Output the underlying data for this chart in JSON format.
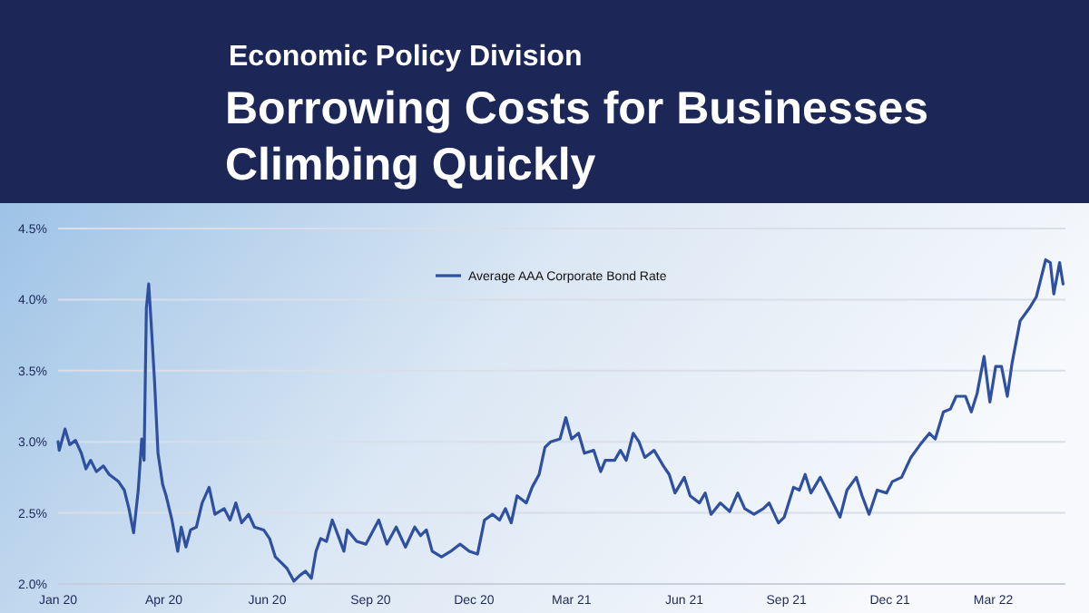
{
  "chart_data": {
    "type": "line",
    "subtitle": "Economic Policy Division",
    "title": "Borrowing Costs for Businesses Climbing Quickly",
    "x": [
      "2020-01-01",
      "2020-01-02",
      "2020-01-07",
      "2020-01-11",
      "2020-01-16",
      "2020-01-21",
      "2020-01-25",
      "2020-01-29",
      "2020-02-03",
      "2020-02-09",
      "2020-02-14",
      "2020-02-22",
      "2020-02-27",
      "2020-03-02",
      "2020-03-06",
      "2020-03-10",
      "2020-03-13",
      "2020-03-15",
      "2020-03-17",
      "2020-03-19",
      "2020-03-21",
      "2020-03-24",
      "2020-03-27",
      "2020-03-31",
      "2020-04-03",
      "2020-04-08",
      "2020-04-13",
      "2020-04-16",
      "2020-04-20",
      "2020-04-24",
      "2020-04-29",
      "2020-05-04",
      "2020-05-10",
      "2020-05-15",
      "2020-05-23",
      "2020-05-28",
      "2020-06-02",
      "2020-06-07",
      "2020-06-13",
      "2020-06-18",
      "2020-06-26",
      "2020-07-01",
      "2020-07-06",
      "2020-07-11",
      "2020-07-16",
      "2020-07-22",
      "2020-07-27",
      "2020-08-01",
      "2020-08-06",
      "2020-08-10",
      "2020-08-14",
      "2020-08-19",
      "2020-08-24",
      "2020-08-30",
      "2020-09-03",
      "2020-09-06",
      "2020-09-14",
      "2020-09-22",
      "2020-10-03",
      "2020-10-10",
      "2020-10-18",
      "2020-10-26",
      "2020-11-03",
      "2020-11-08",
      "2020-11-13",
      "2020-11-18",
      "2020-11-26",
      "2020-12-04",
      "2020-12-12",
      "2020-12-20",
      "2020-12-27",
      "2021-01-02",
      "2021-01-09",
      "2021-01-15",
      "2021-01-20",
      "2021-01-25",
      "2021-01-30",
      "2021-02-07",
      "2021-02-12",
      "2021-02-18",
      "2021-02-23",
      "2021-02-28",
      "2021-03-08",
      "2021-03-13",
      "2021-03-18",
      "2021-03-24",
      "2021-03-29",
      "2021-04-06",
      "2021-04-12",
      "2021-04-16",
      "2021-04-24",
      "2021-04-29",
      "2021-05-04",
      "2021-05-10",
      "2021-05-15",
      "2021-05-20",
      "2021-05-28",
      "2021-06-05",
      "2021-06-10",
      "2021-06-15",
      "2021-06-23",
      "2021-06-28",
      "2021-07-06",
      "2021-07-11",
      "2021-07-16",
      "2021-07-24",
      "2021-08-01",
      "2021-08-08",
      "2021-08-14",
      "2021-08-22",
      "2021-08-30",
      "2021-09-04",
      "2021-09-12",
      "2021-09-17",
      "2021-09-25",
      "2021-09-30",
      "2021-10-05",
      "2021-10-10",
      "2021-10-18",
      "2021-10-26",
      "2021-11-04",
      "2021-11-10",
      "2021-11-18",
      "2021-11-23",
      "2021-11-29",
      "2021-12-06",
      "2021-12-14",
      "2021-12-19",
      "2021-12-27",
      "2022-01-04",
      "2022-01-12",
      "2022-01-20",
      "2022-01-25",
      "2022-02-01",
      "2022-02-07",
      "2022-02-12",
      "2022-02-20",
      "2022-02-25",
      "2022-03-02",
      "2022-03-08",
      "2022-03-13",
      "2022-03-18",
      "2022-03-23",
      "2022-03-28",
      "2022-04-01",
      "2022-04-08",
      "2022-04-16",
      "2022-04-22",
      "2022-04-26",
      "2022-04-30",
      "2022-05-04",
      "2022-05-07",
      "2022-05-12",
      "2022-05-15"
    ],
    "series": [
      {
        "name": "Average AAA Corporate Bond Rate",
        "color": "#2f4f9f",
        "values": [
          3.0,
          2.94,
          3.09,
          2.98,
          3.01,
          2.92,
          2.81,
          2.87,
          2.79,
          2.83,
          2.77,
          2.72,
          2.66,
          2.53,
          2.36,
          2.66,
          3.02,
          2.87,
          3.94,
          4.11,
          3.85,
          3.43,
          2.92,
          2.7,
          2.62,
          2.45,
          2.23,
          2.4,
          2.26,
          2.38,
          2.4,
          2.57,
          2.68,
          2.49,
          2.53,
          2.45,
          2.57,
          2.43,
          2.49,
          2.4,
          2.38,
          2.32,
          2.19,
          2.15,
          2.11,
          2.02,
          2.06,
          2.09,
          2.04,
          2.23,
          2.32,
          2.3,
          2.45,
          2.32,
          2.23,
          2.38,
          2.3,
          2.28,
          2.45,
          2.28,
          2.4,
          2.26,
          2.4,
          2.34,
          2.38,
          2.23,
          2.19,
          2.23,
          2.28,
          2.23,
          2.21,
          2.45,
          2.49,
          2.45,
          2.53,
          2.43,
          2.62,
          2.57,
          2.68,
          2.77,
          2.96,
          3.0,
          3.02,
          3.17,
          3.02,
          3.06,
          2.92,
          2.94,
          2.79,
          2.87,
          2.87,
          2.94,
          2.87,
          3.06,
          3.0,
          2.89,
          2.94,
          2.83,
          2.77,
          2.64,
          2.75,
          2.62,
          2.57,
          2.64,
          2.49,
          2.57,
          2.51,
          2.64,
          2.53,
          2.49,
          2.53,
          2.57,
          2.43,
          2.47,
          2.68,
          2.66,
          2.77,
          2.64,
          2.75,
          2.62,
          2.47,
          2.66,
          2.75,
          2.62,
          2.49,
          2.66,
          2.64,
          2.72,
          2.75,
          2.89,
          2.98,
          3.06,
          3.02,
          3.21,
          3.23,
          3.32,
          3.32,
          3.21,
          3.34,
          3.6,
          3.28,
          3.53,
          3.53,
          3.32,
          3.55,
          3.85,
          3.94,
          4.02,
          4.15,
          4.28,
          4.26,
          4.04,
          4.26,
          4.11
        ]
      }
    ],
    "xlim": [
      "2020-01-01",
      "2022-05-17"
    ],
    "xticks": [
      {
        "value": "2020-01-01",
        "label": "Jan 20"
      },
      {
        "value": "2020-04-01",
        "label": "Apr 20"
      },
      {
        "value": "2020-06-29",
        "label": "Jun 20"
      },
      {
        "value": "2020-09-26",
        "label": "Sep 20"
      },
      {
        "value": "2020-12-24",
        "label": "Dec 20"
      },
      {
        "value": "2021-03-18",
        "label": "Mar 21"
      },
      {
        "value": "2021-06-23",
        "label": "Jun 21"
      },
      {
        "value": "2021-09-19",
        "label": "Sep 21"
      },
      {
        "value": "2021-12-17",
        "label": "Dec 21"
      },
      {
        "value": "2022-03-16",
        "label": "Mar 22"
      }
    ],
    "ylim": [
      2.0,
      4.5
    ],
    "yticks": [
      {
        "value": 2.0,
        "label": "2.0%"
      },
      {
        "value": 2.5,
        "label": "2.5%"
      },
      {
        "value": 3.0,
        "label": "3.0%"
      },
      {
        "value": 3.5,
        "label": "3.5%"
      },
      {
        "value": 4.0,
        "label": "4.0%"
      },
      {
        "value": 4.5,
        "label": "4.5%"
      }
    ],
    "grid": "y",
    "legend": "top",
    "marker": "none",
    "line_style": "solid"
  }
}
